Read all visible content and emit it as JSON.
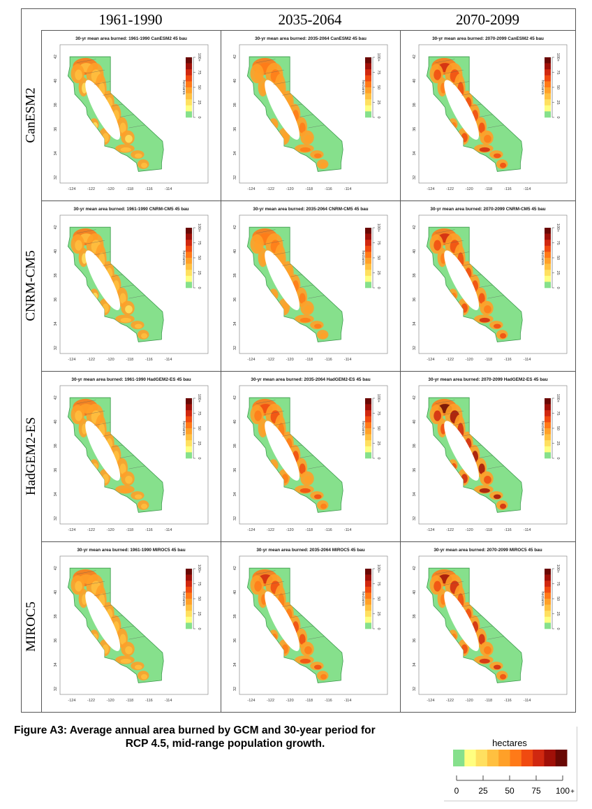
{
  "columns": [
    "1961-1990",
    "2035-2064",
    "2070-2099"
  ],
  "rows": [
    "CanESM2",
    "CNRM-CM5",
    "HadGEM2-ES",
    "MIROC5"
  ],
  "panel_titles": [
    [
      "30-yr mean area burned: 1961-1990 CanESM2 45 bau",
      "30-yr mean area burned: 2035-2064 CanESM2 45 bau",
      "30-yr mean area burned: 2070-2099 CanESM2 45 bau"
    ],
    [
      "30-yr mean area burned: 1961-1990 CNRM-CM5 45 bau",
      "30-yr mean area burned: 2035-2064 CNRM-CM5 45 bau",
      "30-yr mean area burned: 2070-2099 CNRM-CM5 45 bau"
    ],
    [
      "30-yr mean area burned: 1961-1990 HadGEM2-ES 45 bau",
      "30-yr mean area burned: 2035-2064 HadGEM2-ES 45 bau",
      "30-yr mean area burned: 2070-2099 HadGEM2-ES 45 bau"
    ],
    [
      "30-yr mean area burned: 1961-1990 MIROC5 45 bau",
      "30-yr mean area burned: 2035-2064 MIROC5 45 bau",
      "30-yr mean area burned: 2070-2099 MIROC5 45 bau"
    ]
  ],
  "map_axes": {
    "y_ticks": [
      "42",
      "40",
      "38",
      "36",
      "34",
      "32"
    ],
    "x_ticks": [
      "-124",
      "-122",
      "-120",
      "-118",
      "-116",
      "-114"
    ]
  },
  "legend": {
    "title": "hectares",
    "tick_labels": [
      "0",
      "25",
      "50",
      "75",
      "100+"
    ],
    "big_tick_labels": [
      "0",
      "25",
      "50",
      "75",
      "100"
    ],
    "big_plus": "+",
    "colors": [
      "#86e08c",
      "#ffff80",
      "#ffe060",
      "#ffc040",
      "#ffa028",
      "#ff7a18",
      "#f04a10",
      "#d02810",
      "#a01008",
      "#6a0804"
    ]
  },
  "intensity": [
    [
      0.3,
      0.45,
      0.62
    ],
    [
      0.28,
      0.48,
      0.62
    ],
    [
      0.34,
      0.55,
      0.78
    ],
    [
      0.32,
      0.58,
      0.68
    ]
  ],
  "caption": {
    "line1": "Figure A3: Average annual area burned by GCM and 30-year period for",
    "line2": "RCP 4.5, mid-range population growth."
  }
}
